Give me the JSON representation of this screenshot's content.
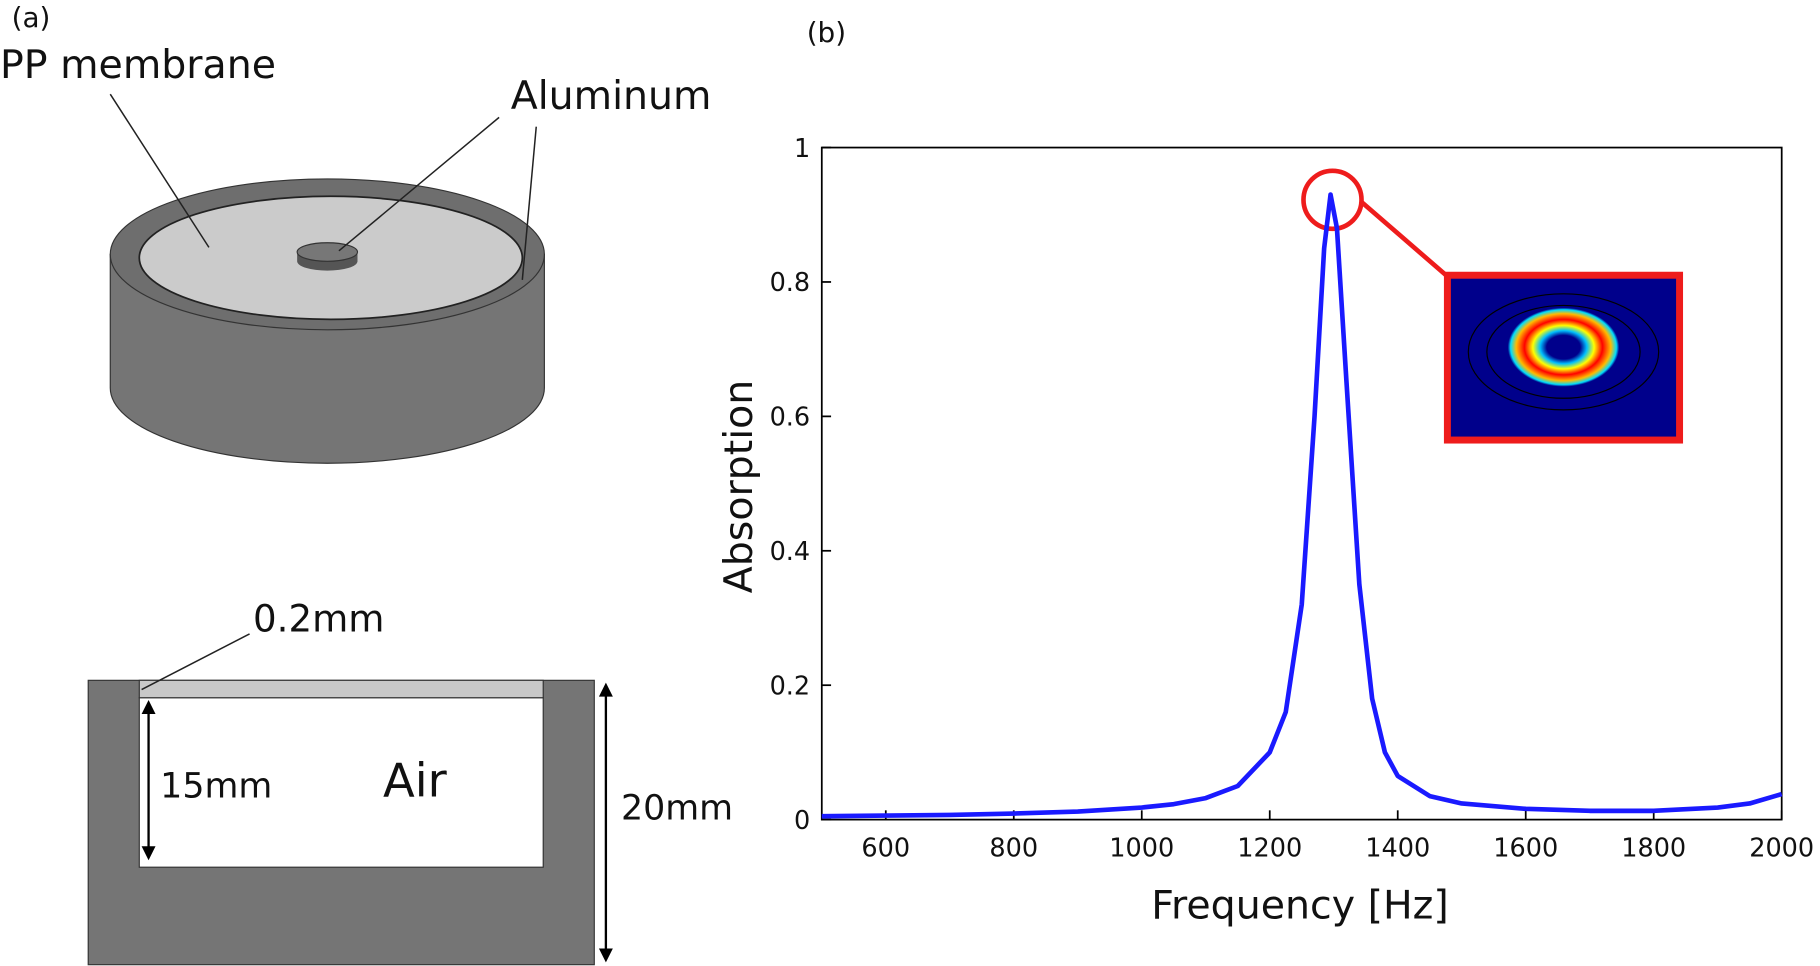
{
  "panel_a": {
    "label": "(a)",
    "top_view": {
      "membrane": "PP membrane",
      "mass": "Aluminum"
    },
    "cross_section": {
      "membrane_thickness": "0.2mm",
      "cavity": "Air",
      "cavity_depth": "15mm",
      "total_depth": "20mm"
    }
  },
  "chart_data": {
    "type": "line",
    "panel_label": "(b)",
    "x_label": "Frequency [Hz]",
    "y_label": "Absorption",
    "x": [
      500,
      600,
      700,
      800,
      900,
      1000,
      1050,
      1100,
      1150,
      1200,
      1225,
      1250,
      1270,
      1285,
      1295,
      1305,
      1320,
      1340,
      1360,
      1380,
      1400,
      1450,
      1500,
      1600,
      1700,
      1800,
      1900,
      1950,
      2000
    ],
    "series": [
      {
        "color": "#1a1aff",
        "values": [
          0.005,
          0.006,
          0.007,
          0.009,
          0.012,
          0.018,
          0.023,
          0.032,
          0.05,
          0.1,
          0.16,
          0.32,
          0.6,
          0.85,
          0.93,
          0.88,
          0.65,
          0.35,
          0.18,
          0.1,
          0.065,
          0.035,
          0.024,
          0.016,
          0.013,
          0.013,
          0.018,
          0.024,
          0.038
        ]
      }
    ],
    "xlim": [
      500,
      2000
    ],
    "ylim": [
      0,
      1
    ],
    "xticks": [
      600,
      800,
      1000,
      1200,
      1400,
      1600,
      1800,
      2000
    ],
    "yticks": [
      0,
      0.2,
      0.4,
      0.6,
      0.8,
      1
    ]
  }
}
